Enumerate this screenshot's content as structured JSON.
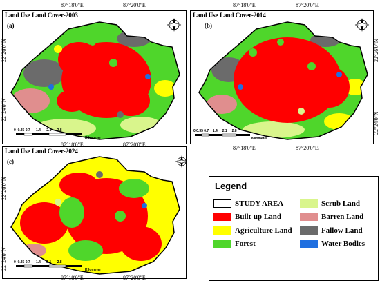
{
  "coords": {
    "lon1": "87°18'0\"E",
    "lon2": "87°20'0\"E",
    "lat1": "22°26'0\"N",
    "lat2": "22°24'0\"N"
  },
  "scale": {
    "ticks": [
      "0",
      "0.35",
      "0.7",
      "1.4",
      "2.1",
      "2.8"
    ],
    "unit": "Kilometer"
  },
  "north_arrow": {
    "n": "N",
    "s": "S",
    "e": "E",
    "w": "W"
  },
  "panels": [
    {
      "title": "Land Use Land Cover-2003",
      "label": "(a)"
    },
    {
      "title": "Land Use Land Cover-2014",
      "label": "(b)"
    },
    {
      "title": "Land Use Land Cover-2024",
      "label": "(c)"
    }
  ],
  "legend": {
    "title": "Legend",
    "items": [
      {
        "label": "STUDY AREA",
        "color": "#ffffff"
      },
      {
        "label": "Scrub Land",
        "color": "#d9f58c"
      },
      {
        "label": "Built-up  Land",
        "color": "#ff0000"
      },
      {
        "label": "Barren Land",
        "color": "#e08e8e"
      },
      {
        "label": "Agriculture Land",
        "color": "#ffff00"
      },
      {
        "label": "Fallow Land",
        "color": "#6b6b6b"
      },
      {
        "label": "Forest",
        "color": "#4fd62b"
      },
      {
        "label": "Water Bodies",
        "color": "#1f6fe0"
      }
    ]
  }
}
